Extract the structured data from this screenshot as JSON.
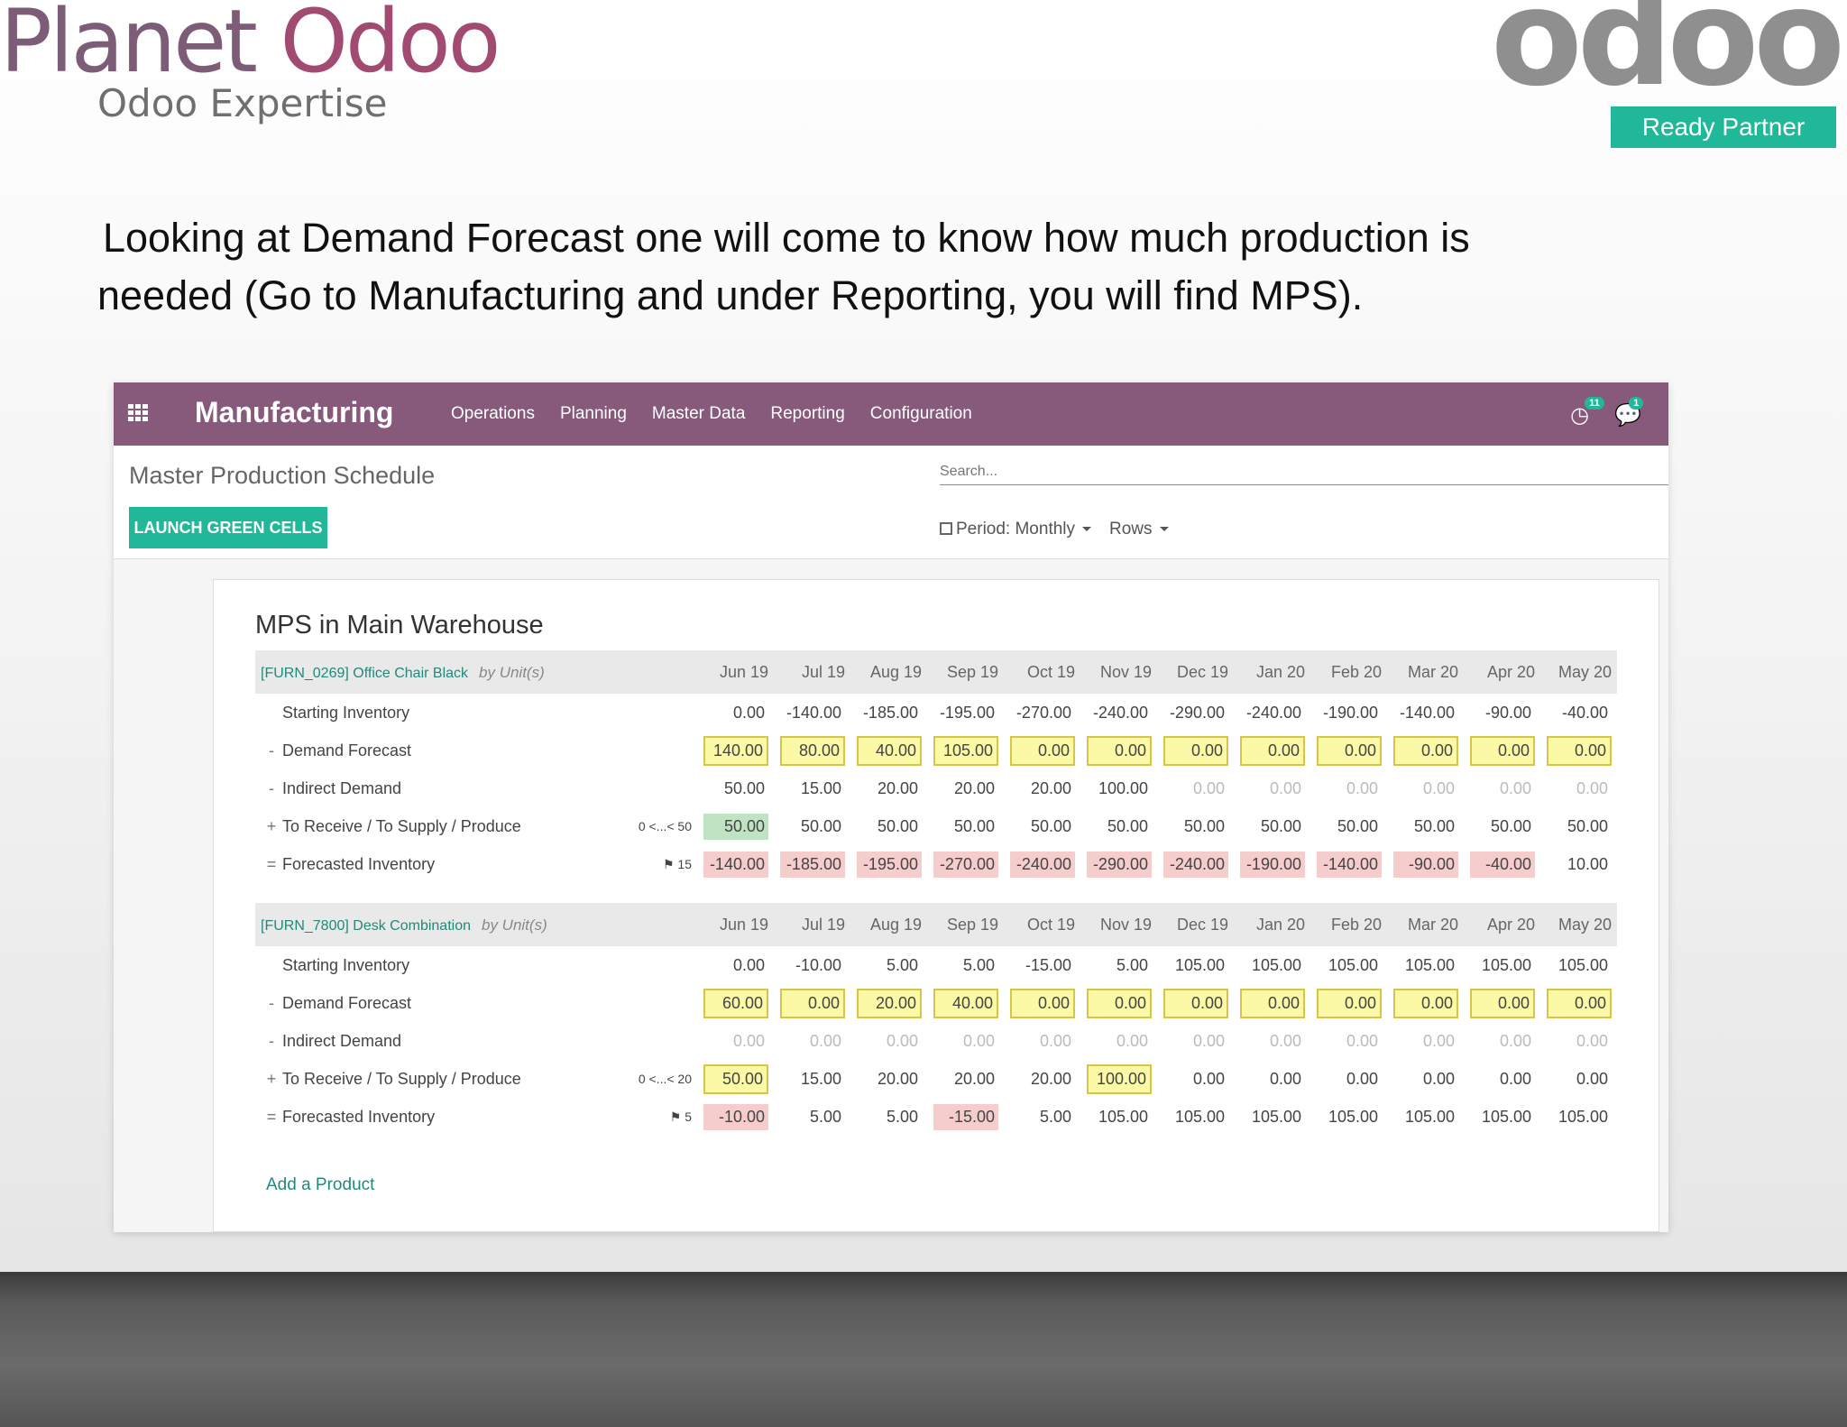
{
  "branding": {
    "left_logo_planet": "Planet",
    "left_logo_odoo": "Odoo",
    "left_logo_subtitle": "Odoo Expertise",
    "right_logo_word": "odoo",
    "right_logo_badge": "Ready Partner"
  },
  "caption": {
    "line1": "Looking at Demand Forecast one will come to know how much production is",
    "line2": "needed (Go to Manufacturing and under Reporting, you will find MPS)."
  },
  "navbar": {
    "app_name": "Manufacturing",
    "menu": [
      "Operations",
      "Planning",
      "Master Data",
      "Reporting",
      "Configuration"
    ],
    "activity_count": "11",
    "message_count": "1"
  },
  "control_panel": {
    "breadcrumb": "Master Production Schedule",
    "launch_button": "LAUNCH GREEN CELLS",
    "search_placeholder": "Search...",
    "period_filter": "Period: Monthly",
    "rows_filter": "Rows"
  },
  "mps": {
    "title": "MPS in Main Warehouse",
    "months": [
      "Jun 19",
      "Jul 19",
      "Aug 19",
      "Sep 19",
      "Oct 19",
      "Nov 19",
      "Dec 19",
      "Jan 20",
      "Feb 20",
      "Mar 20",
      "Apr 20",
      "May 20"
    ],
    "add_product": "Add a Product",
    "products": [
      {
        "code": "[FURN_0269] Office Chair Black",
        "unit": "by Unit(s)",
        "rows": [
          {
            "label": "Starting Inventory",
            "sign": "",
            "range": "",
            "values": [
              "0.00",
              "-140.00",
              "-185.00",
              "-195.00",
              "-270.00",
              "-240.00",
              "-290.00",
              "-240.00",
              "-190.00",
              "-140.00",
              "-90.00",
              "-40.00"
            ]
          },
          {
            "label": "Demand Forecast",
            "sign": "-",
            "range": "",
            "values": [
              "140.00",
              "80.00",
              "40.00",
              "105.00",
              "0.00",
              "0.00",
              "0.00",
              "0.00",
              "0.00",
              "0.00",
              "0.00",
              "0.00"
            ]
          },
          {
            "label": "Indirect Demand",
            "sign": "-",
            "range": "",
            "values": [
              "50.00",
              "15.00",
              "20.00",
              "20.00",
              "20.00",
              "100.00",
              "0.00",
              "0.00",
              "0.00",
              "0.00",
              "0.00",
              "0.00"
            ]
          },
          {
            "label": "To Receive / To Supply / Produce",
            "sign": "+",
            "range": "0 <...< 50",
            "values": [
              "50.00",
              "50.00",
              "50.00",
              "50.00",
              "50.00",
              "50.00",
              "50.00",
              "50.00",
              "50.00",
              "50.00",
              "50.00",
              "50.00"
            ]
          },
          {
            "label": "Forecasted Inventory",
            "sign": "=",
            "range": "15",
            "values": [
              "-140.00",
              "-185.00",
              "-195.00",
              "-270.00",
              "-240.00",
              "-290.00",
              "-240.00",
              "-190.00",
              "-140.00",
              "-90.00",
              "-40.00",
              "10.00"
            ]
          }
        ]
      },
      {
        "code": "[FURN_7800] Desk Combination",
        "unit": "by Unit(s)",
        "rows": [
          {
            "label": "Starting Inventory",
            "sign": "",
            "range": "",
            "values": [
              "0.00",
              "-10.00",
              "5.00",
              "5.00",
              "-15.00",
              "5.00",
              "105.00",
              "105.00",
              "105.00",
              "105.00",
              "105.00",
              "105.00"
            ]
          },
          {
            "label": "Demand Forecast",
            "sign": "-",
            "range": "",
            "values": [
              "60.00",
              "0.00",
              "20.00",
              "40.00",
              "0.00",
              "0.00",
              "0.00",
              "0.00",
              "0.00",
              "0.00",
              "0.00",
              "0.00"
            ]
          },
          {
            "label": "Indirect Demand",
            "sign": "-",
            "range": "",
            "values": [
              "0.00",
              "0.00",
              "0.00",
              "0.00",
              "0.00",
              "0.00",
              "0.00",
              "0.00",
              "0.00",
              "0.00",
              "0.00",
              "0.00"
            ]
          },
          {
            "label": "To Receive / To Supply / Produce",
            "sign": "+",
            "range": "0 <...< 20",
            "values": [
              "50.00",
              "15.00",
              "20.00",
              "20.00",
              "20.00",
              "100.00",
              "0.00",
              "0.00",
              "0.00",
              "0.00",
              "0.00",
              "0.00"
            ]
          },
          {
            "label": "Forecasted Inventory",
            "sign": "=",
            "range": "5",
            "values": [
              "-10.00",
              "5.00",
              "5.00",
              "-15.00",
              "5.00",
              "105.00",
              "105.00",
              "105.00",
              "105.00",
              "105.00",
              "105.00",
              "105.00"
            ]
          }
        ]
      }
    ]
  },
  "colors": {
    "navbar": "#875a7b",
    "accent_teal": "#21b799",
    "input_yellow": "#fcf9a6",
    "cell_green": "#bfe3c3",
    "cell_red": "#f6cdcd"
  }
}
